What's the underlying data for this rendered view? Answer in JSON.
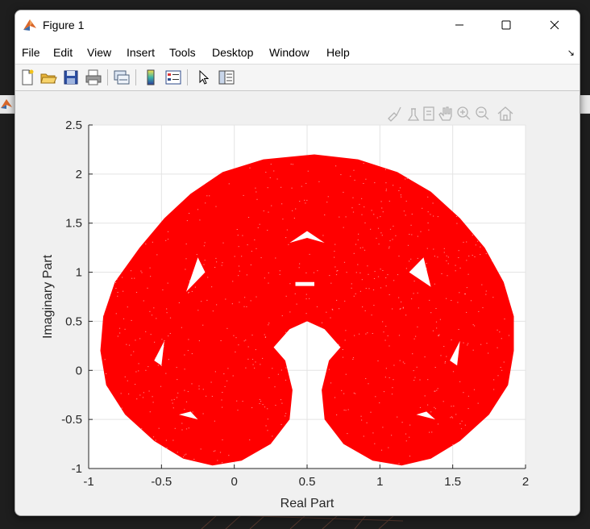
{
  "window": {
    "title": "Figure 1",
    "controls": {
      "minimize": "minimize",
      "maximize": "maximize",
      "close": "close"
    }
  },
  "menu": {
    "items": [
      "File",
      "Edit",
      "View",
      "Insert",
      "Tools",
      "Desktop",
      "Window",
      "Help"
    ]
  },
  "toolbar": {
    "buttons": [
      "new-figure-icon",
      "open-file-icon",
      "save-icon",
      "print-icon",
      "link-plot-icon",
      "colorbar-icon",
      "legend-icon",
      "edit-plot-arrow-icon",
      "property-inspector-icon"
    ]
  },
  "axes_toolbar": {
    "buttons": [
      "brush-icon",
      "data-tips-icon",
      "rotate-icon",
      "pan-icon",
      "zoom-in-icon",
      "zoom-out-icon",
      "home-icon"
    ]
  },
  "chart_data": {
    "type": "scatter",
    "title": "",
    "xlabel": "Real Part",
    "ylabel": "Imaginary Part",
    "xlim": [
      -1,
      2
    ],
    "ylim": [
      -1,
      2.5
    ],
    "xticks": [
      -1,
      -0.5,
      0,
      0.5,
      1,
      1.5,
      2
    ],
    "yticks": [
      -1,
      -0.5,
      0,
      0.5,
      1,
      1.5,
      2,
      2.5
    ],
    "xtick_labels": [
      "-1",
      "-0.5",
      "0",
      "0.5",
      "1",
      "1.5",
      "2"
    ],
    "ytick_labels": [
      "-1",
      "-0.5",
      "0",
      "0.5",
      "1",
      "1.5",
      "2",
      "2.5"
    ],
    "grid": true,
    "series": [
      {
        "marker_color": "#ff0000",
        "description_points": [
          [
            -0.15,
            -0.95
          ],
          [
            1.15,
            -0.95
          ],
          [
            0.4,
            0.5
          ],
          [
            0.6,
            2.2
          ],
          [
            -0.9,
            0.3
          ],
          [
            1.9,
            0.3
          ],
          [
            0.0,
            0.0
          ],
          [
            1.0,
            0.0
          ],
          [
            -0.7,
            1.0
          ],
          [
            1.7,
            1.0
          ],
          [
            0.5,
            1.35
          ],
          [
            0.5,
            0.9
          ]
        ]
      }
    ]
  }
}
